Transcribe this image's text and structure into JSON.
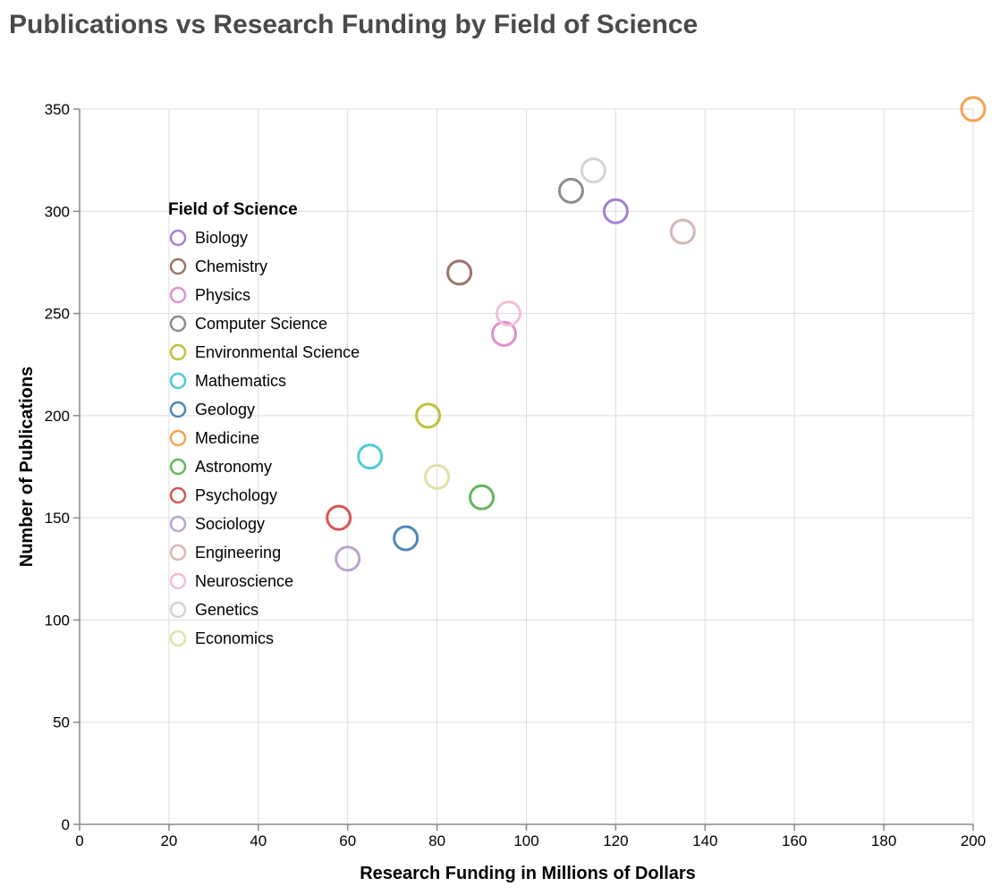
{
  "chart_data": {
    "type": "scatter",
    "title": "Publications vs Research Funding by Field of Science",
    "xlabel": "Research Funding in Millions of Dollars",
    "ylabel": "Number of Publications",
    "xlim": [
      0,
      200
    ],
    "ylim": [
      0,
      350
    ],
    "x_ticks": [
      0,
      20,
      40,
      60,
      80,
      100,
      120,
      140,
      160,
      180,
      200
    ],
    "y_ticks": [
      0,
      50,
      100,
      150,
      200,
      250,
      300,
      350
    ],
    "grid": true,
    "legend": {
      "title": "Field of Science",
      "placement": "top-left inside plot"
    },
    "marker": "open circle",
    "series": [
      {
        "name": "Biology",
        "color": "#a57fd0",
        "x": 120,
        "y": 300
      },
      {
        "name": "Chemistry",
        "color": "#9c746c",
        "x": 85,
        "y": 270
      },
      {
        "name": "Physics",
        "color": "#e28fce",
        "x": 95,
        "y": 240
      },
      {
        "name": "Computer Science",
        "color": "#8d8d8d",
        "x": 110,
        "y": 310
      },
      {
        "name": "Environmental Science",
        "color": "#bfc13f",
        "x": 78,
        "y": 200
      },
      {
        "name": "Mathematics",
        "color": "#4fcbd8",
        "x": 65,
        "y": 180
      },
      {
        "name": "Geology",
        "color": "#4f87b8",
        "x": 73,
        "y": 140
      },
      {
        "name": "Medicine",
        "color": "#f7a251",
        "x": 200,
        "y": 350
      },
      {
        "name": "Astronomy",
        "color": "#66b45e",
        "x": 90,
        "y": 160
      },
      {
        "name": "Psychology",
        "color": "#d95454",
        "x": 58,
        "y": 150
      },
      {
        "name": "Sociology",
        "color": "#bba4d1",
        "x": 60,
        "y": 130
      },
      {
        "name": "Engineering",
        "color": "#d6b6b3",
        "x": 135,
        "y": 290
      },
      {
        "name": "Neuroscience",
        "color": "#f4bcd6",
        "x": 96,
        "y": 250
      },
      {
        "name": "Genetics",
        "color": "#d3d3d3",
        "x": 115,
        "y": 320
      },
      {
        "name": "Economics",
        "color": "#e0e0a8",
        "x": 80,
        "y": 170
      }
    ]
  }
}
